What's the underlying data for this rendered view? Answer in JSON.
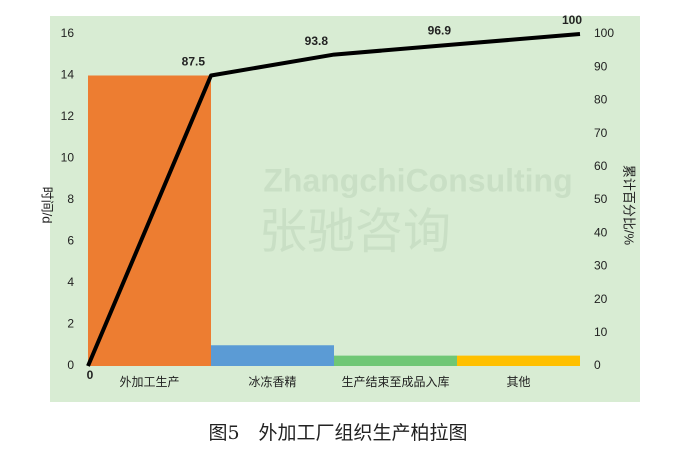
{
  "chart_data": {
    "type": "pareto",
    "title": "图5　外加工厂组织生产柏拉图",
    "watermark": [
      "ZhangchiConsulting",
      "张驰咨询"
    ],
    "y_label": "时间/d",
    "y2_label": "累计百分比/%",
    "categories": [
      "外加工生产",
      "冰冻香精",
      "生产结束至成品入库",
      "其他"
    ],
    "values": [
      14,
      1,
      0.5,
      0.5
    ],
    "colors": [
      "#ed7d31",
      "#5b9bd5",
      "#70c775",
      "#ffc000"
    ],
    "cumulative": {
      "color": "#000000",
      "values": [
        0,
        87.5,
        93.8,
        96.9,
        100
      ]
    },
    "ylim": [
      0,
      16
    ],
    "yticks": [
      0,
      2,
      4,
      6,
      8,
      10,
      12,
      14,
      16
    ],
    "y2lim": [
      0,
      100
    ],
    "y2ticks": [
      0,
      10,
      20,
      30,
      40,
      50,
      60,
      70,
      80,
      90,
      100
    ]
  }
}
